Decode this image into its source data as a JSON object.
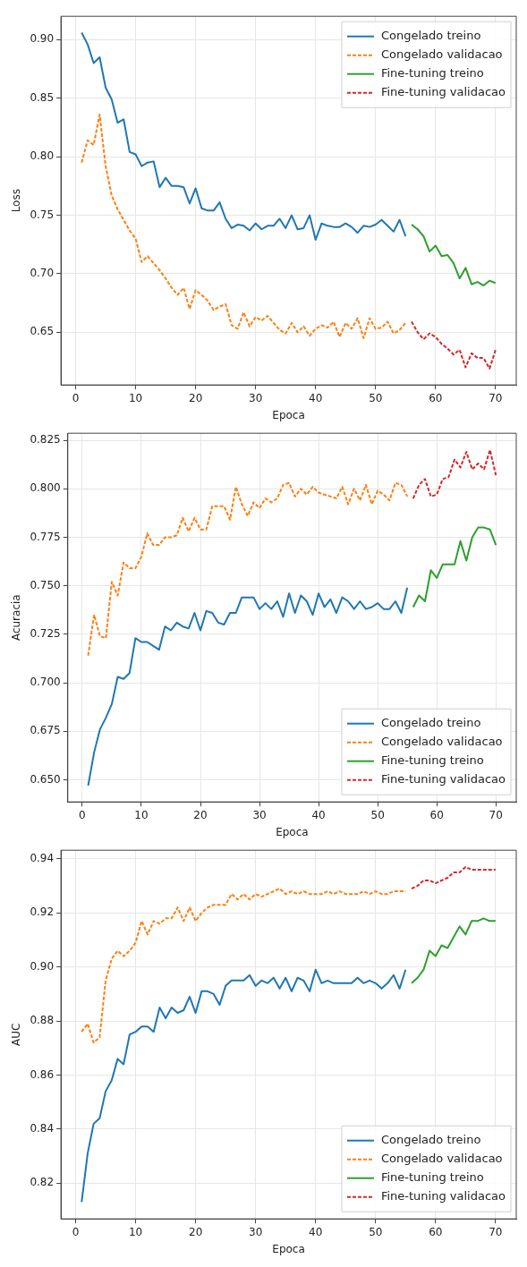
{
  "chart_data": [
    {
      "type": "line",
      "xlabel": "Epoca",
      "ylabel": "Loss",
      "xlim": [
        -2.45,
        73.45
      ],
      "xticks": [
        0,
        10,
        20,
        30,
        40,
        50,
        60,
        70
      ],
      "ylim": [
        0.605,
        0.92
      ],
      "yticks": [
        {
          "value": 0.65,
          "label": "0.65"
        },
        {
          "value": 0.7,
          "label": "0.70"
        },
        {
          "value": 0.75,
          "label": "0.75"
        },
        {
          "value": 0.8,
          "label": "0.80"
        },
        {
          "value": 0.85,
          "label": "0.85"
        },
        {
          "value": 0.9,
          "label": "0.90"
        }
      ],
      "grid": true,
      "legend": "top right",
      "series": [
        {
          "name": "Congelado treino",
          "color": "#1f77b4",
          "line_style": "solid",
          "x": [
            1,
            2,
            3,
            4,
            5,
            6,
            7,
            8,
            9,
            10,
            11,
            12,
            13,
            14,
            15,
            16,
            17,
            18,
            19,
            20,
            21,
            22,
            23,
            24,
            25,
            26,
            27,
            28,
            29,
            30,
            31,
            32,
            33,
            34,
            35,
            36,
            37,
            38,
            39,
            40,
            41,
            42,
            43,
            44,
            45,
            46,
            47,
            48,
            49,
            50,
            51,
            52,
            53,
            54,
            55
          ],
          "values": [
            0.906,
            0.896,
            0.88,
            0.885,
            0.859,
            0.849,
            0.829,
            0.832,
            0.804,
            0.802,
            0.792,
            0.795,
            0.796,
            0.774,
            0.782,
            0.775,
            0.775,
            0.774,
            0.76,
            0.773,
            0.756,
            0.754,
            0.754,
            0.761,
            0.747,
            0.739,
            0.742,
            0.741,
            0.737,
            0.743,
            0.738,
            0.741,
            0.741,
            0.747,
            0.739,
            0.75,
            0.738,
            0.739,
            0.75,
            0.729,
            0.743,
            0.741,
            0.74,
            0.74,
            0.743,
            0.74,
            0.735,
            0.741,
            0.74,
            0.742,
            0.746,
            0.741,
            0.736,
            0.746,
            0.732
          ]
        },
        {
          "name": "Congelado validacao",
          "color": "#ff7f0e",
          "line_style": "dashed",
          "x": [
            1,
            2,
            3,
            4,
            5,
            6,
            7,
            8,
            9,
            10,
            11,
            12,
            13,
            14,
            15,
            16,
            17,
            18,
            19,
            20,
            21,
            22,
            23,
            24,
            25,
            26,
            27,
            28,
            29,
            30,
            31,
            32,
            33,
            34,
            35,
            36,
            37,
            38,
            39,
            40,
            41,
            42,
            43,
            44,
            45,
            46,
            47,
            48,
            49,
            50,
            51,
            52,
            53,
            54,
            55
          ],
          "values": [
            0.795,
            0.814,
            0.81,
            0.836,
            0.792,
            0.767,
            0.755,
            0.746,
            0.737,
            0.73,
            0.71,
            0.715,
            0.709,
            0.703,
            0.696,
            0.688,
            0.682,
            0.688,
            0.67,
            0.686,
            0.682,
            0.677,
            0.669,
            0.672,
            0.674,
            0.656,
            0.653,
            0.667,
            0.655,
            0.663,
            0.66,
            0.664,
            0.658,
            0.652,
            0.649,
            0.658,
            0.65,
            0.655,
            0.647,
            0.653,
            0.656,
            0.654,
            0.659,
            0.646,
            0.658,
            0.653,
            0.662,
            0.645,
            0.662,
            0.653,
            0.654,
            0.659,
            0.649,
            0.652,
            0.658
          ]
        },
        {
          "name": "Fine-tuning treino",
          "color": "#2ca02c",
          "line_style": "solid",
          "x": [
            56,
            57,
            58,
            59,
            60,
            61,
            62,
            63,
            64,
            65,
            66,
            67,
            68,
            69,
            70
          ],
          "values": [
            0.742,
            0.738,
            0.732,
            0.719,
            0.724,
            0.715,
            0.716,
            0.709,
            0.696,
            0.705,
            0.691,
            0.693,
            0.69,
            0.694,
            0.692
          ]
        },
        {
          "name": "Fine-tuning validacao",
          "color": "#d62728",
          "line_style": "dashed",
          "x": [
            56,
            57,
            58,
            59,
            60,
            61,
            62,
            63,
            64,
            65,
            66,
            67,
            68,
            69,
            70
          ],
          "values": [
            0.659,
            0.65,
            0.644,
            0.649,
            0.646,
            0.64,
            0.636,
            0.631,
            0.635,
            0.62,
            0.632,
            0.628,
            0.628,
            0.619,
            0.635
          ]
        }
      ]
    },
    {
      "type": "line",
      "xlabel": "Epoca",
      "ylabel": "Acuracia",
      "xlim": [
        -2.45,
        73.45
      ],
      "xticks": [
        0,
        10,
        20,
        30,
        40,
        50,
        60,
        70
      ],
      "ylim": [
        0.6386,
        0.8286
      ],
      "yticks": [
        {
          "value": 0.65,
          "label": "0.650"
        },
        {
          "value": 0.675,
          "label": "0.675"
        },
        {
          "value": 0.7,
          "label": "0.700"
        },
        {
          "value": 0.725,
          "label": "0.725"
        },
        {
          "value": 0.75,
          "label": "0.750"
        },
        {
          "value": 0.775,
          "label": "0.775"
        },
        {
          "value": 0.8,
          "label": "0.800"
        },
        {
          "value": 0.825,
          "label": "0.825"
        }
      ],
      "grid": true,
      "legend": "bottom right",
      "series": [
        {
          "name": "Congelado treino",
          "color": "#1f77b4",
          "line_style": "solid",
          "x": [
            1,
            2,
            3,
            4,
            5,
            6,
            7,
            8,
            9,
            10,
            11,
            12,
            13,
            14,
            15,
            16,
            17,
            18,
            19,
            20,
            21,
            22,
            23,
            24,
            25,
            26,
            27,
            28,
            29,
            30,
            31,
            32,
            33,
            34,
            35,
            36,
            37,
            38,
            39,
            40,
            41,
            42,
            43,
            44,
            45,
            46,
            47,
            48,
            49,
            50,
            51,
            52,
            53,
            54,
            55
          ],
          "values": [
            0.647,
            0.664,
            0.676,
            0.682,
            0.689,
            0.703,
            0.702,
            0.705,
            0.723,
            0.721,
            0.721,
            0.719,
            0.717,
            0.729,
            0.727,
            0.731,
            0.729,
            0.728,
            0.736,
            0.727,
            0.737,
            0.736,
            0.731,
            0.73,
            0.736,
            0.736,
            0.744,
            0.744,
            0.744,
            0.738,
            0.741,
            0.738,
            0.742,
            0.734,
            0.746,
            0.736,
            0.745,
            0.742,
            0.735,
            0.746,
            0.739,
            0.743,
            0.736,
            0.744,
            0.742,
            0.738,
            0.742,
            0.738,
            0.739,
            0.741,
            0.738,
            0.738,
            0.742,
            0.736,
            0.749
          ]
        },
        {
          "name": "Congelado validacao",
          "color": "#ff7f0e",
          "line_style": "dashed",
          "x": [
            1,
            2,
            3,
            4,
            5,
            6,
            7,
            8,
            9,
            10,
            11,
            12,
            13,
            14,
            15,
            16,
            17,
            18,
            19,
            20,
            21,
            22,
            23,
            24,
            25,
            26,
            27,
            28,
            29,
            30,
            31,
            32,
            33,
            34,
            35,
            36,
            37,
            38,
            39,
            40,
            41,
            42,
            43,
            44,
            45,
            46,
            47,
            48,
            49,
            50,
            51,
            52,
            53,
            54,
            55
          ],
          "values": [
            0.714,
            0.735,
            0.724,
            0.723,
            0.752,
            0.745,
            0.762,
            0.759,
            0.759,
            0.765,
            0.777,
            0.771,
            0.771,
            0.775,
            0.775,
            0.776,
            0.785,
            0.778,
            0.785,
            0.779,
            0.779,
            0.791,
            0.791,
            0.791,
            0.784,
            0.801,
            0.792,
            0.786,
            0.793,
            0.79,
            0.795,
            0.793,
            0.795,
            0.802,
            0.803,
            0.796,
            0.8,
            0.797,
            0.801,
            0.798,
            0.797,
            0.796,
            0.795,
            0.801,
            0.792,
            0.8,
            0.794,
            0.802,
            0.792,
            0.799,
            0.797,
            0.794,
            0.803,
            0.802,
            0.796
          ]
        },
        {
          "name": "Fine-tuning treino",
          "color": "#2ca02c",
          "line_style": "solid",
          "x": [
            56,
            57,
            58,
            59,
            60,
            61,
            62,
            63,
            64,
            65,
            66,
            67,
            68,
            69,
            70
          ],
          "values": [
            0.739,
            0.745,
            0.742,
            0.758,
            0.754,
            0.761,
            0.761,
            0.761,
            0.773,
            0.763,
            0.775,
            0.78,
            0.78,
            0.779,
            0.771
          ]
        },
        {
          "name": "Fine-tuning validacao",
          "color": "#d62728",
          "line_style": "dashed",
          "x": [
            56,
            57,
            58,
            59,
            60,
            61,
            62,
            63,
            64,
            65,
            66,
            67,
            68,
            69,
            70
          ],
          "values": [
            0.795,
            0.802,
            0.805,
            0.796,
            0.797,
            0.805,
            0.806,
            0.815,
            0.811,
            0.819,
            0.81,
            0.813,
            0.81,
            0.82,
            0.807
          ]
        }
      ]
    },
    {
      "type": "line",
      "xlabel": "Epoca",
      "ylabel": "AUC",
      "xlim": [
        -2.45,
        73.45
      ],
      "xticks": [
        0,
        10,
        20,
        30,
        40,
        50,
        60,
        70
      ],
      "ylim": [
        0.8068,
        0.9432
      ],
      "yticks": [
        {
          "value": 0.82,
          "label": "0.82"
        },
        {
          "value": 0.84,
          "label": "0.84"
        },
        {
          "value": 0.86,
          "label": "0.86"
        },
        {
          "value": 0.88,
          "label": "0.88"
        },
        {
          "value": 0.9,
          "label": "0.90"
        },
        {
          "value": 0.92,
          "label": "0.92"
        },
        {
          "value": 0.94,
          "label": "0.94"
        }
      ],
      "grid": true,
      "legend": "bottom right",
      "series": [
        {
          "name": "Congelado treino",
          "color": "#1f77b4",
          "line_style": "solid",
          "x": [
            1,
            2,
            3,
            4,
            5,
            6,
            7,
            8,
            9,
            10,
            11,
            12,
            13,
            14,
            15,
            16,
            17,
            18,
            19,
            20,
            21,
            22,
            23,
            24,
            25,
            26,
            27,
            28,
            29,
            30,
            31,
            32,
            33,
            34,
            35,
            36,
            37,
            38,
            39,
            40,
            41,
            42,
            43,
            44,
            45,
            46,
            47,
            48,
            49,
            50,
            51,
            52,
            53,
            54,
            55
          ],
          "values": [
            0.813,
            0.831,
            0.842,
            0.844,
            0.854,
            0.858,
            0.866,
            0.864,
            0.875,
            0.876,
            0.878,
            0.878,
            0.876,
            0.885,
            0.881,
            0.885,
            0.883,
            0.884,
            0.889,
            0.883,
            0.891,
            0.891,
            0.89,
            0.886,
            0.893,
            0.895,
            0.895,
            0.895,
            0.897,
            0.893,
            0.895,
            0.894,
            0.896,
            0.892,
            0.896,
            0.891,
            0.896,
            0.895,
            0.891,
            0.899,
            0.894,
            0.895,
            0.894,
            0.894,
            0.894,
            0.894,
            0.896,
            0.894,
            0.895,
            0.894,
            0.892,
            0.894,
            0.897,
            0.892,
            0.899
          ]
        },
        {
          "name": "Congelado validacao",
          "color": "#ff7f0e",
          "line_style": "dashed",
          "x": [
            1,
            2,
            3,
            4,
            5,
            6,
            7,
            8,
            9,
            10,
            11,
            12,
            13,
            14,
            15,
            16,
            17,
            18,
            19,
            20,
            21,
            22,
            23,
            24,
            25,
            26,
            27,
            28,
            29,
            30,
            31,
            32,
            33,
            34,
            35,
            36,
            37,
            38,
            39,
            40,
            41,
            42,
            43,
            44,
            45,
            46,
            47,
            48,
            49,
            50,
            51,
            52,
            53,
            54,
            55
          ],
          "values": [
            0.876,
            0.879,
            0.872,
            0.874,
            0.895,
            0.903,
            0.906,
            0.904,
            0.906,
            0.909,
            0.917,
            0.912,
            0.917,
            0.916,
            0.918,
            0.918,
            0.922,
            0.917,
            0.922,
            0.917,
            0.92,
            0.922,
            0.923,
            0.923,
            0.923,
            0.927,
            0.925,
            0.927,
            0.925,
            0.927,
            0.926,
            0.927,
            0.928,
            0.929,
            0.927,
            0.928,
            0.927,
            0.928,
            0.927,
            0.927,
            0.927,
            0.928,
            0.927,
            0.928,
            0.927,
            0.927,
            0.927,
            0.928,
            0.927,
            0.928,
            0.927,
            0.927,
            0.928,
            0.928,
            0.928
          ]
        },
        {
          "name": "Fine-tuning treino",
          "color": "#2ca02c",
          "line_style": "solid",
          "x": [
            56,
            57,
            58,
            59,
            60,
            61,
            62,
            63,
            64,
            65,
            66,
            67,
            68,
            69,
            70
          ],
          "values": [
            0.894,
            0.896,
            0.899,
            0.906,
            0.904,
            0.908,
            0.907,
            0.911,
            0.915,
            0.912,
            0.917,
            0.917,
            0.918,
            0.917,
            0.917
          ]
        },
        {
          "name": "Fine-tuning validacao",
          "color": "#d62728",
          "line_style": "dashed",
          "x": [
            56,
            57,
            58,
            59,
            60,
            61,
            62,
            63,
            64,
            65,
            66,
            67,
            68,
            69,
            70
          ],
          "values": [
            0.929,
            0.93,
            0.932,
            0.932,
            0.931,
            0.932,
            0.933,
            0.935,
            0.935,
            0.937,
            0.936,
            0.936,
            0.936,
            0.936,
            0.936
          ]
        }
      ]
    }
  ]
}
